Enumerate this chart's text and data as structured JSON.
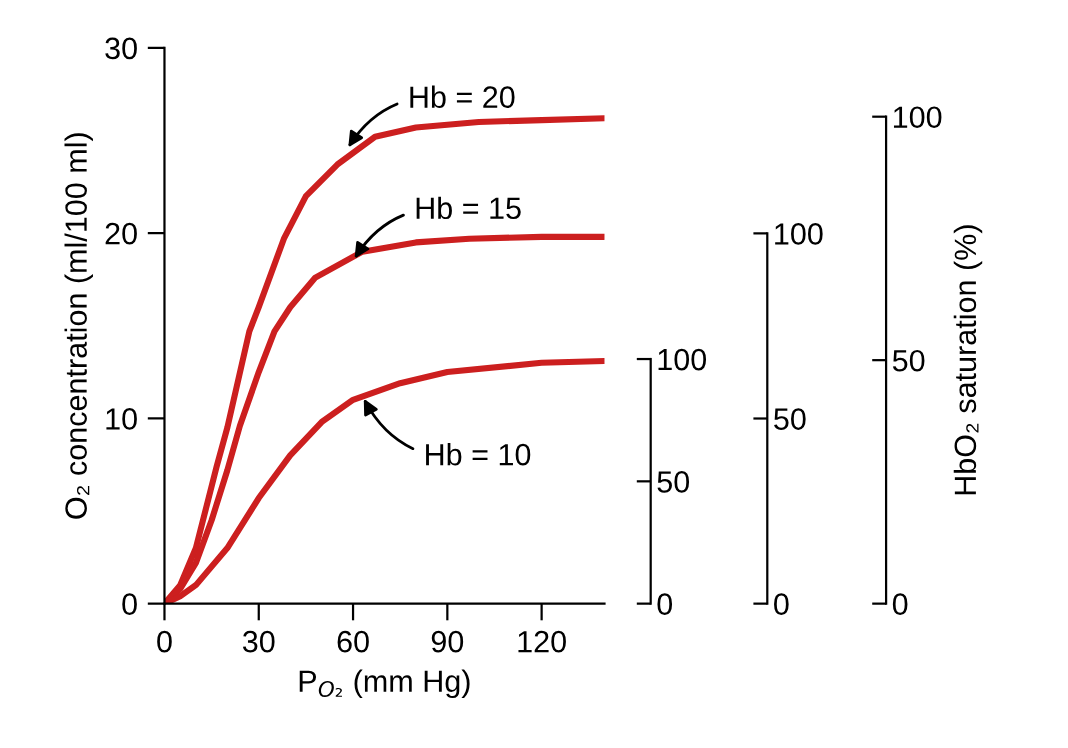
{
  "chart_data": {
    "type": "line",
    "xlabel": "P$_{O₂}$ (mm Hg)",
    "ylabel": "O₂ concentration (ml/100 ml)",
    "y2label": "HbO₂ saturation (%)",
    "xlim": [
      0,
      140
    ],
    "xticks": [
      0,
      30,
      60,
      90,
      120
    ],
    "ylim": [
      0,
      30
    ],
    "yticks": [
      0,
      10,
      20,
      30
    ],
    "y2lim": [
      0,
      100
    ],
    "y2ticks": [
      0,
      50,
      100
    ],
    "y3lim": [
      0,
      100
    ],
    "y3ticks": [
      0,
      50,
      100
    ],
    "grid": false,
    "legend": false,
    "marker": "none",
    "line_style": "solid",
    "series": [
      {
        "color": "#cc1f1f",
        "x": [
          0,
          5,
          10,
          16.6,
          20,
          27,
          30,
          38,
          45,
          55,
          67,
          80,
          100,
          120,
          140
        ],
        "values": [
          0,
          1,
          3,
          7.4,
          9.5,
          14.7,
          16,
          19.7,
          22,
          23.7,
          25.2,
          25.7,
          26,
          26.1,
          26.2
        ]
      },
      {
        "color": "#cc1f1f",
        "x": [
          0,
          5,
          10,
          15,
          20,
          24,
          30,
          35,
          40,
          48,
          63,
          80,
          97,
          120,
          140
        ],
        "values": [
          0,
          0.8,
          2.2,
          4.5,
          7.2,
          9.6,
          12.5,
          14.7,
          16,
          17.6,
          19,
          19.5,
          19.7,
          19.8,
          19.8
        ]
      },
      {
        "color": "#cc1f1f",
        "x": [
          0,
          5,
          10,
          20,
          30,
          40,
          50,
          60,
          75,
          90,
          120,
          140
        ],
        "values": [
          0,
          0.4,
          1,
          3,
          5.7,
          8,
          9.8,
          11,
          11.9,
          12.5,
          13,
          13.1
        ]
      }
    ],
    "annotations": [
      {
        "text": "Hb = 20",
        "x": 58,
        "y": 24.5
      },
      {
        "text": "Hb = 15",
        "x": 60,
        "y": 18.5
      },
      {
        "text": "Hb = 10",
        "x": 63,
        "y": 11.2
      },
      "0",
      "50",
      "100"
    ]
  }
}
